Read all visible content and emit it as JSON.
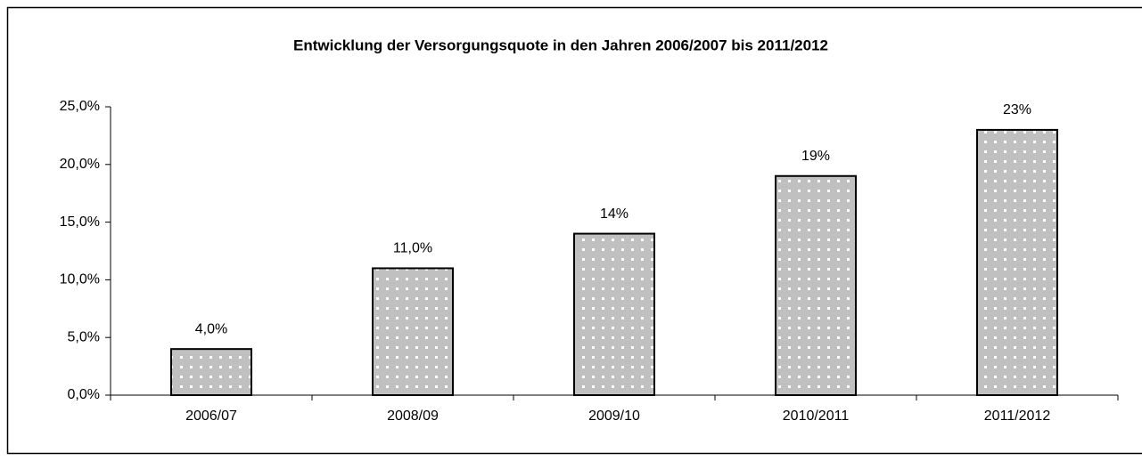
{
  "chart_data": {
    "type": "bar",
    "title": "Entwicklung der Versorgungsquote in den Jahren 2006/2007 bis 2011/2012",
    "categories": [
      "2006/07",
      "2008/09",
      "2009/10",
      "2010/2011",
      "2011/2012"
    ],
    "values": [
      4,
      11,
      14,
      19,
      23
    ],
    "value_labels": [
      "4,0%",
      "11,0%",
      "14%",
      "19%",
      "23%"
    ],
    "color": "#c0c0c0",
    "ylim": [
      0,
      25
    ],
    "yticks": [
      {
        "value": 0,
        "label": "0,0%"
      },
      {
        "value": 5,
        "label": "5,0%"
      },
      {
        "value": 10,
        "label": "10,0%"
      },
      {
        "value": 15,
        "label": "15,0%"
      },
      {
        "value": 20,
        "label": "20,0%"
      },
      {
        "value": 25,
        "label": "25,0%"
      }
    ],
    "grid": false
  }
}
